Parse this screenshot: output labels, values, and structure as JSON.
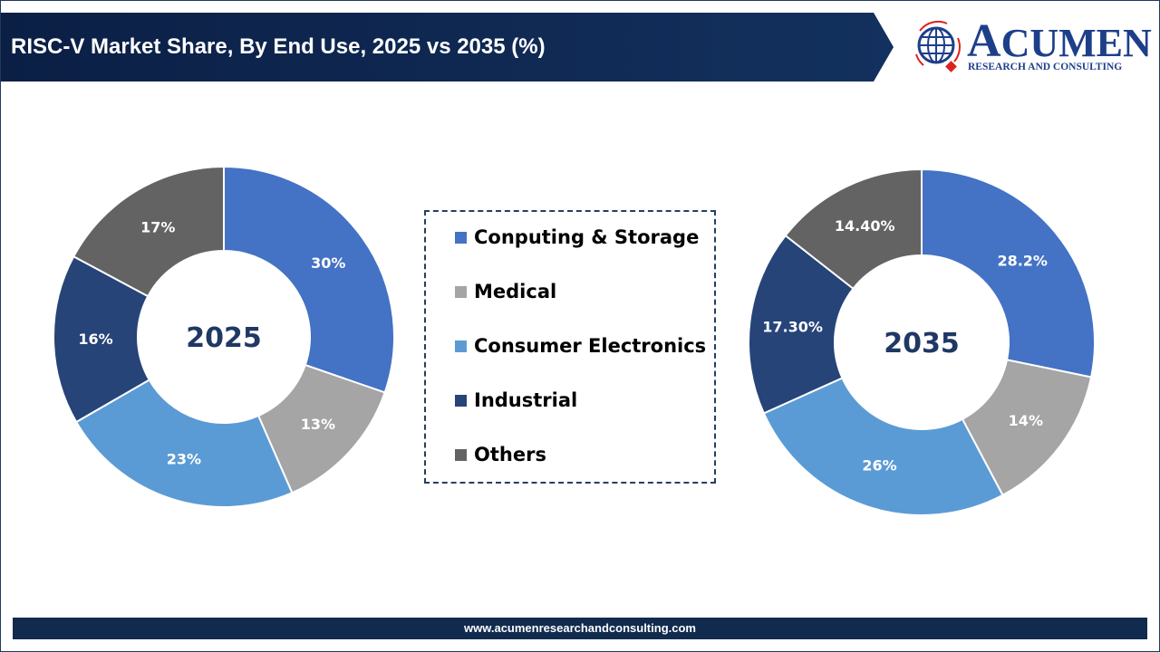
{
  "header": {
    "title": "RISC-V Market Share, By End Use, 2025 vs 2035 (%)"
  },
  "logo": {
    "name": "ACUMEN",
    "tagline": "RESEARCH AND CONSULTING"
  },
  "footer": {
    "url": "www.acumenresearchandconsulting.com"
  },
  "chart_data": [
    {
      "type": "donut",
      "center_label": "2025",
      "categories": [
        "Conputing & Storage",
        "Medical",
        "Consumer Electronics",
        "Industrial",
        "Others"
      ],
      "values": [
        30,
        13,
        23,
        16,
        17
      ],
      "labels": [
        "30%",
        "13%",
        "23%",
        "16%",
        "17%"
      ],
      "colors": [
        "#4472C4",
        "#A5A5A5",
        "#5B9BD5",
        "#264478",
        "#636363"
      ]
    },
    {
      "type": "donut",
      "center_label": "2035",
      "categories": [
        "Conputing & Storage",
        "Medical",
        "Consumer Electronics",
        "Industrial",
        "Others"
      ],
      "values": [
        28.2,
        14,
        26,
        17.3,
        14.4
      ],
      "labels": [
        "28.2%",
        "14%",
        "26%",
        "17.30%",
        "14.40%"
      ],
      "colors": [
        "#4472C4",
        "#A5A5A5",
        "#5B9BD5",
        "#264478",
        "#636363"
      ]
    }
  ],
  "legend": {
    "placement": "center",
    "items": [
      {
        "label": "Conputing & Storage",
        "color": "#4472C4"
      },
      {
        "label": "Medical",
        "color": "#A5A5A5"
      },
      {
        "label": "Consumer Electronics",
        "color": "#5B9BD5"
      },
      {
        "label": "Industrial",
        "color": "#264478"
      },
      {
        "label": "Others",
        "color": "#636363"
      }
    ]
  }
}
